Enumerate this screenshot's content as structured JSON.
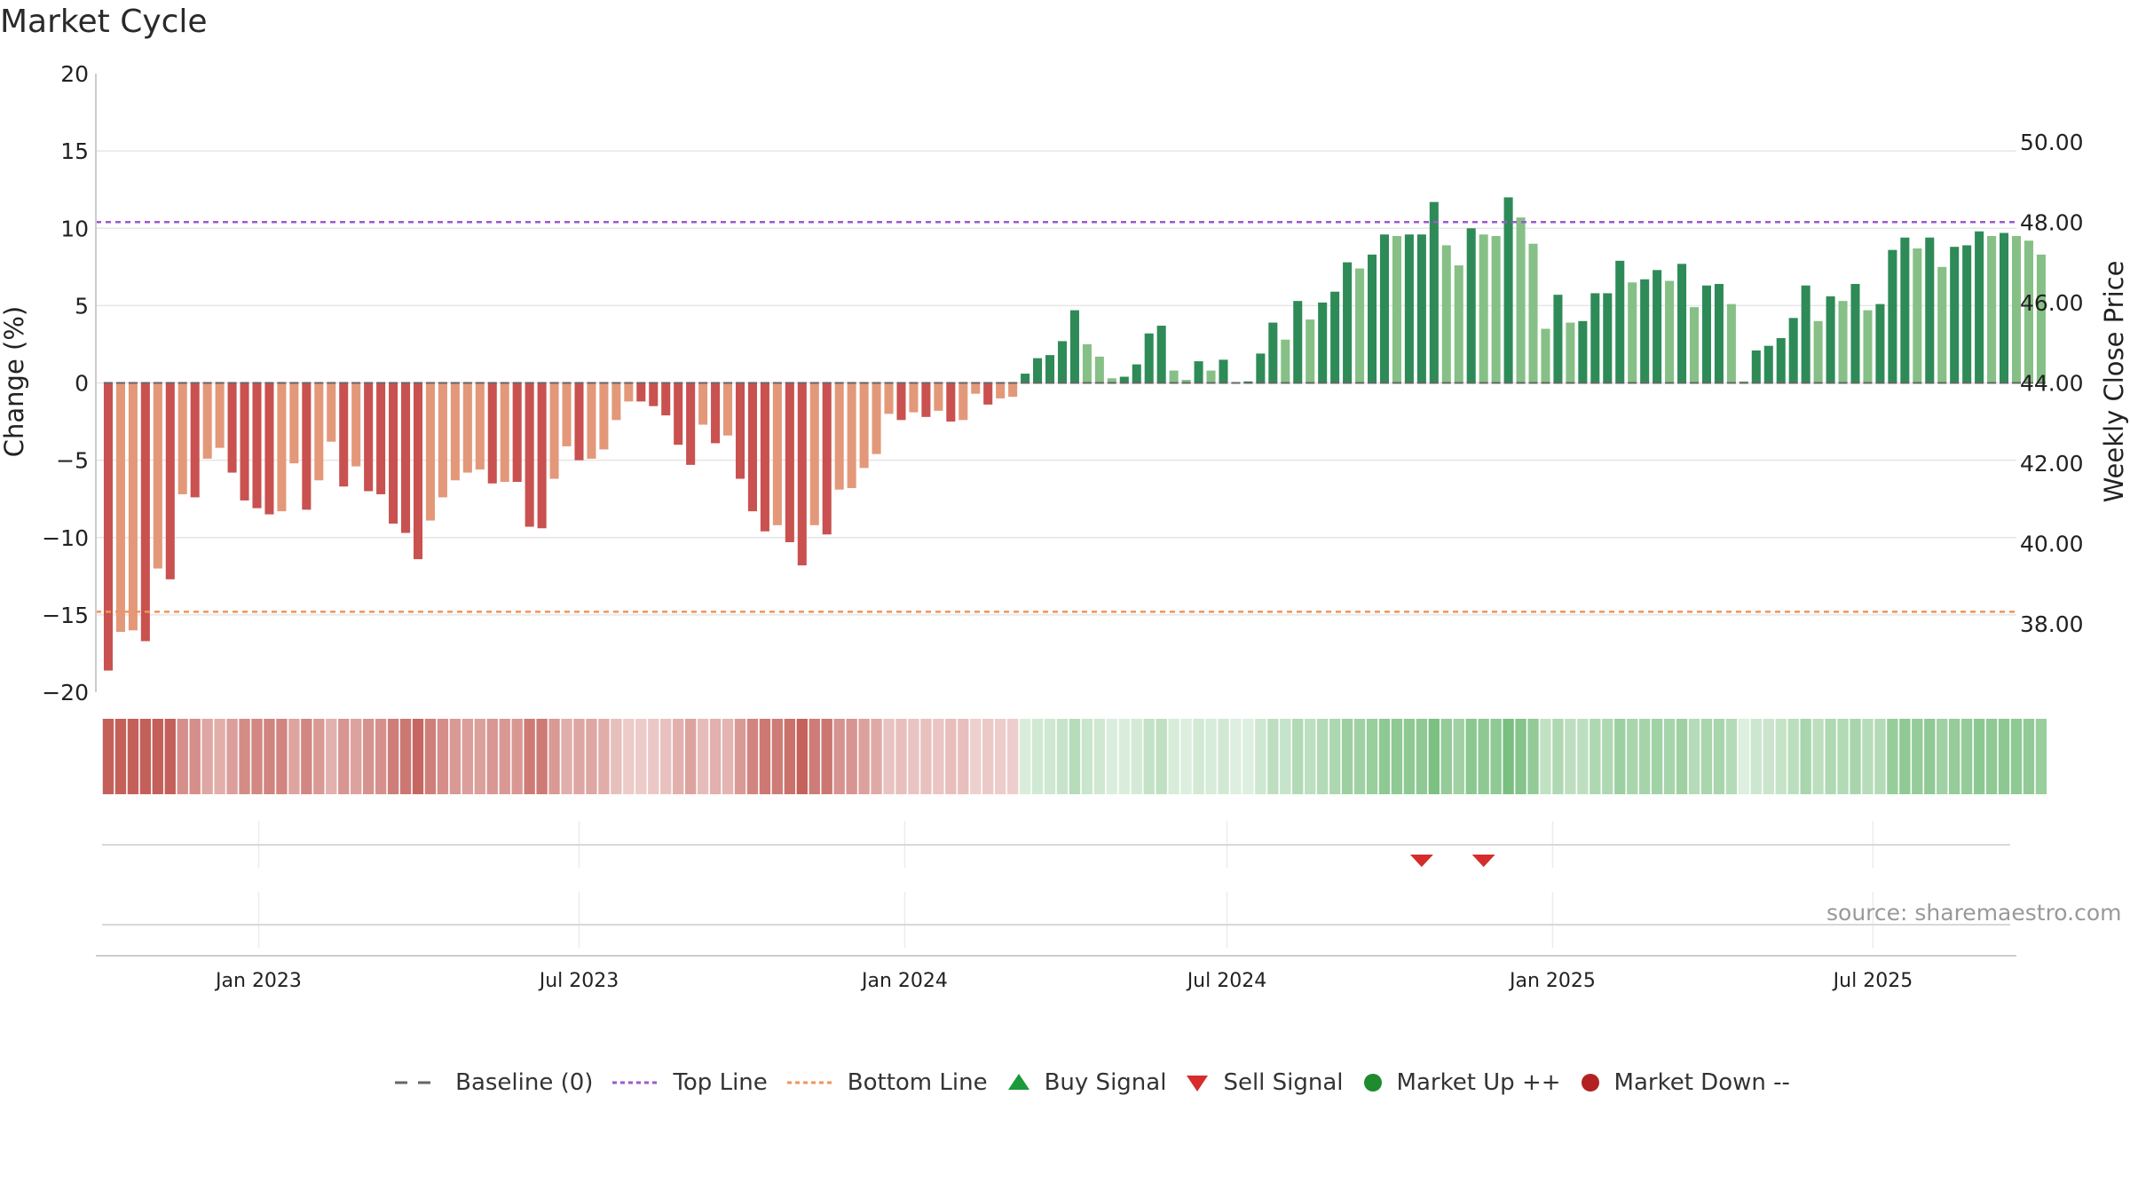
{
  "title": "Market Cycle",
  "source": "source: sharemaestro.com",
  "colors": {
    "red_dark": "#c9514f",
    "red_light": "#e3987a",
    "green_dark": "#2e8b57",
    "green_light": "#86c086",
    "top_line": "#9b59d0",
    "bottom_line": "#f0955a",
    "baseline": "#666666",
    "buy": "#1a9a3a",
    "sell": "#d62c2c",
    "market_up": "#1f8a2e",
    "market_down": "#b22222"
  },
  "legend": [
    {
      "key": "baseline",
      "label": "Baseline (0)"
    },
    {
      "key": "top",
      "label": "Top Line"
    },
    {
      "key": "bottom",
      "label": "Bottom Line"
    },
    {
      "key": "buy",
      "label": "Buy Signal"
    },
    {
      "key": "sell",
      "label": "Sell Signal"
    },
    {
      "key": "up",
      "label": "Market Up ++"
    },
    {
      "key": "down",
      "label": "Market Down --"
    }
  ],
  "chart_data": {
    "type": "bar",
    "title": "Market Cycle",
    "ylabel": "Change (%)",
    "y2label": "Weekly Close Price",
    "ylim": [
      -20,
      20
    ],
    "yticks": [
      20,
      15,
      10,
      5,
      0,
      -5,
      -10,
      -15,
      -20
    ],
    "ytick_labels": [
      "20",
      "15",
      "10",
      "5",
      "0",
      "−5",
      "−10",
      "−15",
      "−20"
    ],
    "y2ticks": [
      50,
      48,
      46,
      44,
      42,
      40,
      38
    ],
    "y2tick_labels": [
      "50.00",
      "48.00",
      "46.00",
      "44.00",
      "42.00",
      "40.00",
      "38.00"
    ],
    "y2lim": [
      36.3,
      51.7
    ],
    "xlim": [
      "2022-10-01",
      "2025-09-20"
    ],
    "xticks": [
      "2023-01-01",
      "2023-07-01",
      "2024-01-01",
      "2024-07-01",
      "2025-01-01",
      "2025-07-01"
    ],
    "xtick_labels": [
      "Jan 2023",
      "Jul 2023",
      "Jan 2024",
      "Jul 2024",
      "Jan 2025",
      "Jul 2025"
    ],
    "top_line": 10.4,
    "bottom_line": -14.8,
    "baseline": 0,
    "start_week": "2022-10-08",
    "values": [
      -18.6,
      -16.1,
      -16.0,
      -16.7,
      -12.0,
      -12.7,
      -7.2,
      -7.4,
      -4.9,
      -4.2,
      -5.8,
      -7.6,
      -8.1,
      -8.5,
      -8.3,
      -5.2,
      -8.2,
      -6.3,
      -3.8,
      -6.7,
      -5.4,
      -7.0,
      -7.2,
      -9.1,
      -9.7,
      -11.4,
      -8.9,
      -7.4,
      -6.3,
      -5.8,
      -5.6,
      -6.5,
      -6.4,
      -6.4,
      -9.3,
      -9.4,
      -6.2,
      -4.1,
      -5.0,
      -4.9,
      -4.3,
      -2.4,
      -1.2,
      -1.2,
      -1.5,
      -2.1,
      -4.0,
      -5.3,
      -2.7,
      -3.9,
      -3.4,
      -6.2,
      -8.3,
      -9.6,
      -9.2,
      -10.3,
      -11.8,
      -9.2,
      -9.8,
      -6.9,
      -6.8,
      -5.5,
      -4.6,
      -2.0,
      -2.4,
      -1.9,
      -2.2,
      -1.8,
      -2.5,
      -2.4,
      -0.7,
      -1.4,
      -1.0,
      -0.9,
      0.6,
      1.6,
      1.8,
      2.7,
      4.7,
      2.5,
      1.7,
      0.3,
      0.4,
      1.2,
      3.2,
      3.7,
      0.8,
      0.2,
      1.4,
      0.8,
      1.5,
      0.0,
      0.1,
      1.9,
      3.9,
      2.8,
      5.3,
      4.1,
      5.2,
      5.9,
      7.8,
      7.4,
      8.3,
      9.6,
      9.5,
      9.6,
      9.6,
      11.7,
      8.9,
      7.6,
      10.0,
      9.6,
      9.5,
      12.0,
      10.7,
      9.0,
      3.5,
      5.7,
      3.9,
      4.0,
      5.8,
      5.8,
      7.9,
      6.5,
      6.7,
      7.3,
      6.6,
      7.7,
      4.9,
      6.3,
      6.4,
      5.1,
      0.1,
      2.1,
      2.4,
      2.9,
      4.2,
      6.3,
      4.0,
      5.6,
      5.3,
      6.4,
      4.7,
      5.1,
      8.6,
      9.4,
      8.7,
      9.4,
      7.5,
      8.8,
      8.9,
      9.8,
      9.5,
      9.7,
      9.5,
      9.2,
      8.3
    ],
    "sell_signals": [
      "2024-10-19",
      "2024-11-23"
    ],
    "buy_signals": []
  }
}
